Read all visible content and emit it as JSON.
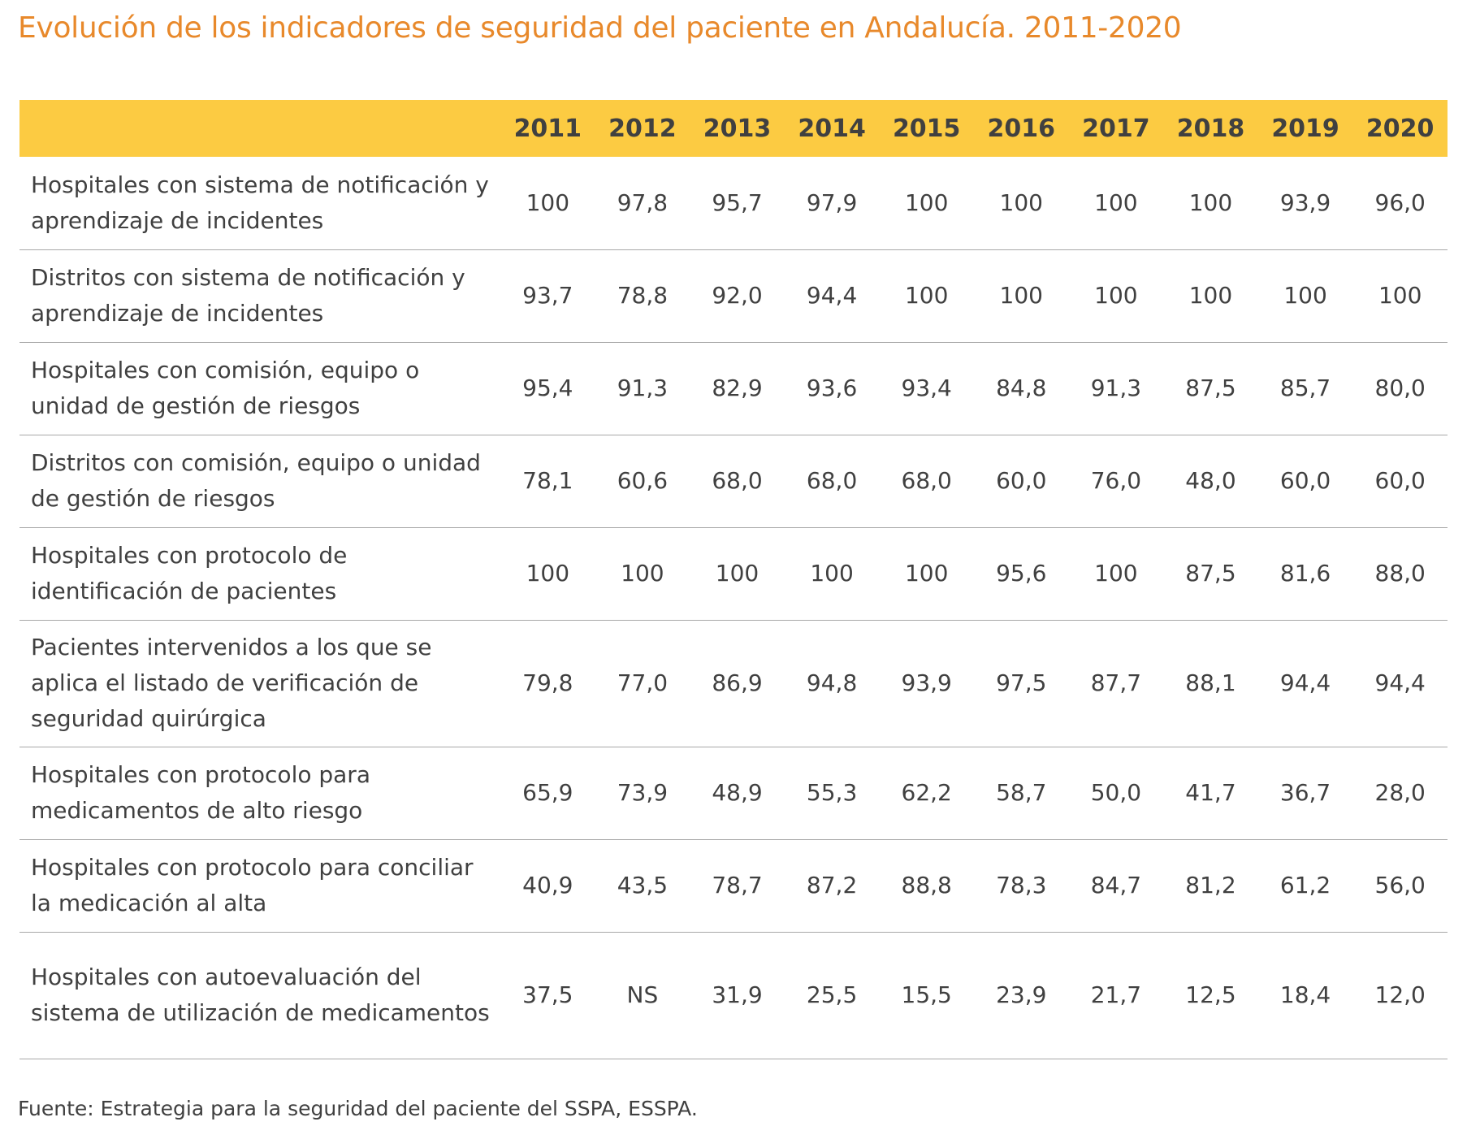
{
  "title": "Evolución de los indicadores de seguridad del paciente en Andalucía. 2011-2020",
  "source": "Fuente: Estrategia para la seguridad del paciente del SSPA, ESSPA.",
  "colors": {
    "title": "#E8892B",
    "header_bg": "#FCCB42",
    "text": "#404040",
    "rule": "#A8A8A8"
  },
  "chart_data": {
    "type": "table",
    "title": "Evolución de los indicadores de seguridad del paciente en Andalucía. 2011-2020",
    "columns": [
      "2011",
      "2012",
      "2013",
      "2014",
      "2015",
      "2016",
      "2017",
      "2018",
      "2019",
      "2020"
    ],
    "rows": [
      {
        "label": "Hospitales con sistema de notificación y aprendizaje de incidentes",
        "lines": 2,
        "values": [
          "100",
          "97,8",
          "95,7",
          "97,9",
          "100",
          "100",
          "100",
          "100",
          "93,9",
          "96,0"
        ]
      },
      {
        "label": "Distritos con sistema de notificación y aprendizaje de incidentes",
        "lines": 2,
        "values": [
          "93,7",
          "78,8",
          "92,0",
          "94,4",
          "100",
          "100",
          "100",
          "100",
          "100",
          "100"
        ]
      },
      {
        "label": "Hospitales con comisión, equipo o unidad de gestión de riesgos",
        "lines": 2,
        "values": [
          "95,4",
          "91,3",
          "82,9",
          "93,6",
          "93,4",
          "84,8",
          "91,3",
          "87,5",
          "85,7",
          "80,0"
        ]
      },
      {
        "label": "Distritos con comisión, equipo o unidad de gestión de riesgos",
        "lines": 2,
        "values": [
          "78,1",
          "60,6",
          "68,0",
          "68,0",
          "68,0",
          "60,0",
          "76,0",
          "48,0",
          "60,0",
          "60,0"
        ]
      },
      {
        "label": "Hospitales con protocolo de identificación de pacientes",
        "lines": 2,
        "values": [
          "100",
          "100",
          "100",
          "100",
          "100",
          "95,6",
          "100",
          "87,5",
          "81,6",
          "88,0"
        ]
      },
      {
        "label": "Pacientes intervenidos a los que se aplica el listado de verificación de seguridad quirúrgica",
        "lines": 3,
        "values": [
          "79,8",
          "77,0",
          "86,9",
          "94,8",
          "93,9",
          "97,5",
          "87,7",
          "88,1",
          "94,4",
          "94,4"
        ]
      },
      {
        "label": "Hospitales con protocolo para medicamentos de alto riesgo",
        "lines": 2,
        "values": [
          "65,9",
          "73,9",
          "48,9",
          "55,3",
          "62,2",
          "58,7",
          "50,0",
          "41,7",
          "36,7",
          "28,0"
        ]
      },
      {
        "label": "Hospitales con protocolo para conciliar la medicación al alta",
        "lines": 2,
        "values": [
          "40,9",
          "43,5",
          "78,7",
          "87,2",
          "88,8",
          "78,3",
          "84,7",
          "81,2",
          "61,2",
          "56,0"
        ]
      },
      {
        "label": "Hospitales con autoevaluación del sistema de utilización de medicamentos",
        "lines": 3,
        "values": [
          "37,5",
          "NS",
          "31,9",
          "25,5",
          "15,5",
          "23,9",
          "21,7",
          "12,5",
          "18,4",
          "12,0"
        ]
      }
    ]
  }
}
